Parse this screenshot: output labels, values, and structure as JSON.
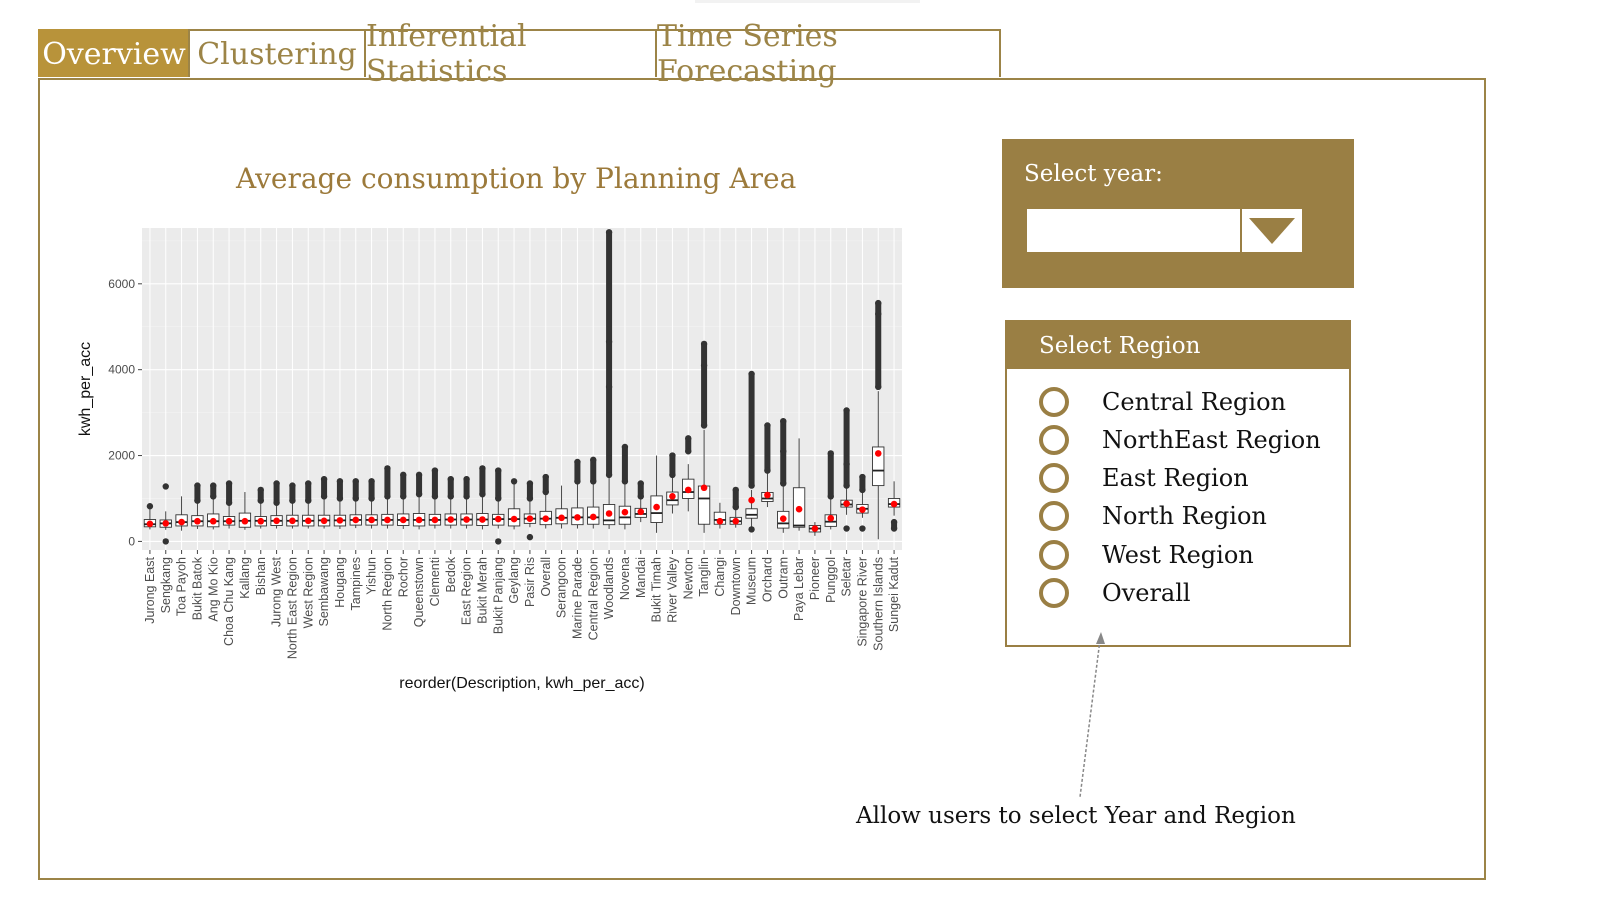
{
  "tabs": [
    {
      "label": "Overview",
      "active": true
    },
    {
      "label": "Clustering",
      "active": false
    },
    {
      "label": "Inferential Statistics",
      "active": false
    },
    {
      "label": "Time Series Forecasting",
      "active": false
    }
  ],
  "overview": {
    "chart_title": "Average consumption by Planning Area",
    "annotation": "Allow users to select Year and Region"
  },
  "year_select": {
    "label": "Select year:",
    "value": "",
    "dropdown_icon": "caret-down-icon"
  },
  "region_select": {
    "header": "Select Region",
    "options": [
      "Central Region",
      "NorthEast Region",
      "East Region",
      "North Region",
      "West Region",
      "Overall"
    ]
  },
  "colors": {
    "accent": "#b8933a",
    "panel_brown": "#9a7f44",
    "plot_bg": "#ebebeb",
    "mean_point": "#ff0000",
    "outlier": "#333333"
  },
  "chart_data": {
    "type": "boxplot",
    "xlabel": "reorder(Description, kwh_per_acc)",
    "ylabel": "kwh_per_acc",
    "ylim": [
      -200,
      7300
    ],
    "yticks": [
      0,
      2000,
      4000,
      6000
    ],
    "grid": true,
    "series": [
      {
        "name": "Jurong East",
        "q1": 340,
        "median": 400,
        "q3": 510,
        "mean": 410,
        "whisker_low": 280,
        "whisker_high": 780,
        "outliers": [
          820
        ]
      },
      {
        "name": "Sengkang",
        "q1": 330,
        "median": 420,
        "q3": 500,
        "mean": 420,
        "whisker_low": 270,
        "whisker_high": 700,
        "outliers": [
          0,
          1280
        ]
      },
      {
        "name": "Toa Payoh",
        "q1": 360,
        "median": 450,
        "q3": 620,
        "mean": 450,
        "whisker_low": 250,
        "whisker_high": 1050,
        "outliers": []
      },
      {
        "name": "Bukit Batok",
        "q1": 360,
        "median": 470,
        "q3": 600,
        "mean": 470,
        "whisker_low": 290,
        "whisker_high": 900,
        "outliers": [
          950,
          1300
        ]
      },
      {
        "name": "Ang Mo Kio",
        "q1": 340,
        "median": 470,
        "q3": 640,
        "mean": 470,
        "whisker_low": 280,
        "whisker_high": 1000,
        "outliers": [
          1050,
          1300
        ]
      },
      {
        "name": "Choa Chu Kang",
        "q1": 380,
        "median": 470,
        "q3": 580,
        "mean": 470,
        "whisker_low": 300,
        "whisker_high": 850,
        "outliers": [
          900,
          1350
        ]
      },
      {
        "name": "Kallang",
        "q1": 330,
        "median": 480,
        "q3": 660,
        "mean": 470,
        "whisker_low": 270,
        "whisker_high": 1150,
        "outliers": []
      },
      {
        "name": "Bishan",
        "q1": 360,
        "median": 480,
        "q3": 580,
        "mean": 470,
        "whisker_low": 300,
        "whisker_high": 900,
        "outliers": [
          950,
          1200
        ]
      },
      {
        "name": "Jurong West",
        "q1": 370,
        "median": 480,
        "q3": 600,
        "mean": 480,
        "whisker_low": 300,
        "whisker_high": 850,
        "outliers": [
          900,
          1350
        ]
      },
      {
        "name": "North East Region",
        "q1": 360,
        "median": 480,
        "q3": 610,
        "mean": 480,
        "whisker_low": 300,
        "whisker_high": 900,
        "outliers": [
          950,
          1300
        ]
      },
      {
        "name": "West Region",
        "q1": 360,
        "median": 480,
        "q3": 610,
        "mean": 480,
        "whisker_low": 300,
        "whisker_high": 900,
        "outliers": [
          950,
          1350
        ]
      },
      {
        "name": "Sembawang",
        "q1": 360,
        "median": 490,
        "q3": 610,
        "mean": 480,
        "whisker_low": 300,
        "whisker_high": 1000,
        "outliers": [
          1050,
          1450
        ]
      },
      {
        "name": "Hougang",
        "q1": 360,
        "median": 490,
        "q3": 610,
        "mean": 490,
        "whisker_low": 290,
        "whisker_high": 950,
        "outliers": [
          1000,
          1400
        ]
      },
      {
        "name": "Tampines",
        "q1": 380,
        "median": 500,
        "q3": 620,
        "mean": 500,
        "whisker_low": 310,
        "whisker_high": 950,
        "outliers": [
          1000,
          1400
        ]
      },
      {
        "name": "Yishun",
        "q1": 380,
        "median": 500,
        "q3": 620,
        "mean": 500,
        "whisker_low": 300,
        "whisker_high": 950,
        "outliers": [
          1000,
          1400
        ]
      },
      {
        "name": "North Region",
        "q1": 380,
        "median": 500,
        "q3": 630,
        "mean": 500,
        "whisker_low": 300,
        "whisker_high": 1000,
        "outliers": [
          1050,
          1700
        ]
      },
      {
        "name": "Rochor",
        "q1": 370,
        "median": 500,
        "q3": 640,
        "mean": 500,
        "whisker_low": 290,
        "whisker_high": 1000,
        "outliers": [
          1050,
          1550
        ]
      },
      {
        "name": "Queenstown",
        "q1": 360,
        "median": 500,
        "q3": 650,
        "mean": 500,
        "whisker_low": 280,
        "whisker_high": 1050,
        "outliers": [
          1100,
          1550
        ]
      },
      {
        "name": "Clementi",
        "q1": 380,
        "median": 500,
        "q3": 630,
        "mean": 500,
        "whisker_low": 300,
        "whisker_high": 1000,
        "outliers": [
          1050,
          1650
        ]
      },
      {
        "name": "Bedok",
        "q1": 380,
        "median": 510,
        "q3": 640,
        "mean": 510,
        "whisker_low": 300,
        "whisker_high": 1000,
        "outliers": [
          1050,
          1450
        ]
      },
      {
        "name": "East Region",
        "q1": 380,
        "median": 510,
        "q3": 640,
        "mean": 510,
        "whisker_low": 300,
        "whisker_high": 1000,
        "outliers": [
          1050,
          1450
        ]
      },
      {
        "name": "Bukit Merah",
        "q1": 370,
        "median": 510,
        "q3": 650,
        "mean": 510,
        "whisker_low": 280,
        "whisker_high": 1050,
        "outliers": [
          1100,
          1700
        ]
      },
      {
        "name": "Bukit Panjang",
        "q1": 380,
        "median": 520,
        "q3": 630,
        "mean": 520,
        "whisker_low": 300,
        "whisker_high": 950,
        "outliers": [
          0,
          1000,
          1650
        ]
      },
      {
        "name": "Geylang",
        "q1": 360,
        "median": 520,
        "q3": 760,
        "mean": 520,
        "whisker_low": 280,
        "whisker_high": 1350,
        "outliers": [
          1400
        ]
      },
      {
        "name": "Pasir Ris",
        "q1": 420,
        "median": 530,
        "q3": 640,
        "mean": 530,
        "whisker_low": 330,
        "whisker_high": 950,
        "outliers": [
          100,
          1000,
          1350
        ]
      },
      {
        "name": "Overall",
        "q1": 390,
        "median": 530,
        "q3": 700,
        "mean": 530,
        "whisker_low": 300,
        "whisker_high": 1100,
        "outliers": [
          1150,
          1500
        ]
      },
      {
        "name": "Serangoon",
        "q1": 410,
        "median": 550,
        "q3": 760,
        "mean": 550,
        "whisker_low": 300,
        "whisker_high": 1300,
        "outliers": []
      },
      {
        "name": "Marine Parade",
        "q1": 390,
        "median": 560,
        "q3": 780,
        "mean": 560,
        "whisker_low": 300,
        "whisker_high": 1350,
        "outliers": [
          1400,
          1850
        ]
      },
      {
        "name": "Central Region",
        "q1": 400,
        "median": 560,
        "q3": 800,
        "mean": 570,
        "whisker_low": 300,
        "whisker_high": 1350,
        "outliers": [
          1400,
          1900
        ]
      },
      {
        "name": "Woodlands",
        "q1": 390,
        "median": 490,
        "q3": 860,
        "mean": 650,
        "whisker_low": 290,
        "whisker_high": 1500,
        "outliers": [
          1550,
          3600,
          4650,
          7200
        ]
      },
      {
        "name": "Novena",
        "q1": 400,
        "median": 560,
        "q3": 820,
        "mean": 680,
        "whisker_low": 280,
        "whisker_high": 1350,
        "outliers": [
          1400,
          2200
        ]
      },
      {
        "name": "Mandai",
        "q1": 560,
        "median": 640,
        "q3": 770,
        "mean": 690,
        "whisker_low": 450,
        "whisker_high": 1000,
        "outliers": [
          1050,
          1350
        ]
      },
      {
        "name": "Bukit Timah",
        "q1": 440,
        "median": 660,
        "q3": 1060,
        "mean": 800,
        "whisker_low": 200,
        "whisker_high": 2000,
        "outliers": []
      },
      {
        "name": "River Valley",
        "q1": 850,
        "median": 960,
        "q3": 1150,
        "mean": 1050,
        "whisker_low": 650,
        "whisker_high": 1500,
        "outliers": [
          1550,
          2000
        ]
      },
      {
        "name": "Newton",
        "q1": 1000,
        "median": 1150,
        "q3": 1450,
        "mean": 1200,
        "whisker_low": 700,
        "whisker_high": 1800,
        "outliers": [
          2100,
          2400
        ]
      },
      {
        "name": "Tanglin",
        "q1": 400,
        "median": 1000,
        "q3": 1290,
        "mean": 1250,
        "whisker_low": 200,
        "whisker_high": 2600,
        "outliers": [
          2700,
          4100,
          4600
        ]
      },
      {
        "name": "Changi",
        "q1": 400,
        "median": 500,
        "q3": 680,
        "mean": 470,
        "whisker_low": 300,
        "whisker_high": 900,
        "outliers": []
      },
      {
        "name": "Downtown",
        "q1": 400,
        "median": 470,
        "q3": 560,
        "mean": 470,
        "whisker_low": 320,
        "whisker_high": 750,
        "outliers": [
          800,
          1200
        ]
      },
      {
        "name": "Museum",
        "q1": 540,
        "median": 620,
        "q3": 760,
        "mean": 960,
        "whisker_low": 300,
        "whisker_high": 1200,
        "outliers": [
          280,
          1300,
          3900
        ]
      },
      {
        "name": "Orchard",
        "q1": 930,
        "median": 1000,
        "q3": 1140,
        "mean": 1080,
        "whisker_low": 800,
        "whisker_high": 1600,
        "outliers": [
          1650,
          2700
        ]
      },
      {
        "name": "Outram",
        "q1": 310,
        "median": 420,
        "q3": 700,
        "mean": 530,
        "whisker_low": 200,
        "whisker_high": 1300,
        "outliers": [
          1350,
          2100,
          2800
        ]
      },
      {
        "name": "Paya Lebar",
        "q1": 330,
        "median": 370,
        "q3": 1250,
        "mean": 750,
        "whisker_low": 250,
        "whisker_high": 2400,
        "outliers": []
      },
      {
        "name": "Pioneer",
        "q1": 220,
        "median": 300,
        "q3": 370,
        "mean": 300,
        "whisker_low": 130,
        "whisker_high": 450,
        "outliers": []
      },
      {
        "name": "Punggol",
        "q1": 350,
        "median": 460,
        "q3": 620,
        "mean": 540,
        "whisker_low": 280,
        "whisker_high": 1000,
        "outliers": [
          1050,
          2050
        ]
      },
      {
        "name": "Seletar",
        "q1": 800,
        "median": 860,
        "q3": 960,
        "mean": 880,
        "whisker_low": 620,
        "whisker_high": 1250,
        "outliers": [
          300,
          1300,
          1800,
          3050
        ]
      },
      {
        "name": "Singapore River",
        "q1": 660,
        "median": 760,
        "q3": 860,
        "mean": 740,
        "whisker_low": 550,
        "whisker_high": 1150,
        "outliers": [
          300,
          1200,
          1500
        ]
      },
      {
        "name": "Southern Islands",
        "q1": 1300,
        "median": 1650,
        "q3": 2200,
        "mean": 2050,
        "whisker_low": 50,
        "whisker_high": 3500,
        "outliers": [
          3600,
          5300,
          5550
        ]
      },
      {
        "name": "Sungei Kadut",
        "q1": 800,
        "median": 870,
        "q3": 1000,
        "mean": 870,
        "whisker_low": 600,
        "whisker_high": 1400,
        "outliers": [
          300,
          450
        ]
      }
    ]
  }
}
